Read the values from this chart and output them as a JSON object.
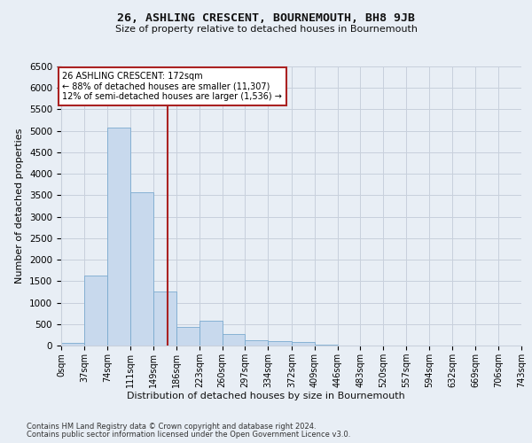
{
  "title": "26, ASHLING CRESCENT, BOURNEMOUTH, BH8 9JB",
  "subtitle": "Size of property relative to detached houses in Bournemouth",
  "xlabel": "Distribution of detached houses by size in Bournemouth",
  "ylabel": "Number of detached properties",
  "footnote1": "Contains HM Land Registry data © Crown copyright and database right 2024.",
  "footnote2": "Contains public sector information licensed under the Open Government Licence v3.0.",
  "annotation_text": "26 ASHLING CRESCENT: 172sqm\n← 88% of detached houses are smaller (11,307)\n12% of semi-detached houses are larger (1,536) →",
  "bin_edges": [
    0,
    37,
    74,
    111,
    149,
    186,
    223,
    260,
    297,
    334,
    372,
    409,
    446,
    483,
    520,
    557,
    594,
    632,
    669,
    706,
    743
  ],
  "bin_labels": [
    "0sqm",
    "37sqm",
    "74sqm",
    "111sqm",
    "149sqm",
    "186sqm",
    "223sqm",
    "260sqm",
    "297sqm",
    "334sqm",
    "372sqm",
    "409sqm",
    "446sqm",
    "483sqm",
    "520sqm",
    "557sqm",
    "594sqm",
    "632sqm",
    "669sqm",
    "706sqm",
    "743sqm"
  ],
  "bar_heights": [
    60,
    1620,
    5080,
    3580,
    1250,
    430,
    580,
    270,
    120,
    100,
    80,
    30,
    10,
    5,
    3,
    2,
    1,
    1,
    0,
    0
  ],
  "bar_color": "#c8d9ed",
  "bar_edge_color": "#7aaacf",
  "vline_color": "#aa2222",
  "vline_x": 172,
  "annotation_box_color": "#aa2222",
  "ylim": [
    0,
    6500
  ],
  "yticks": [
    0,
    500,
    1000,
    1500,
    2000,
    2500,
    3000,
    3500,
    4000,
    4500,
    5000,
    5500,
    6000,
    6500
  ],
  "bg_color": "#e8eef5",
  "grid_color": "#c8d0dc"
}
